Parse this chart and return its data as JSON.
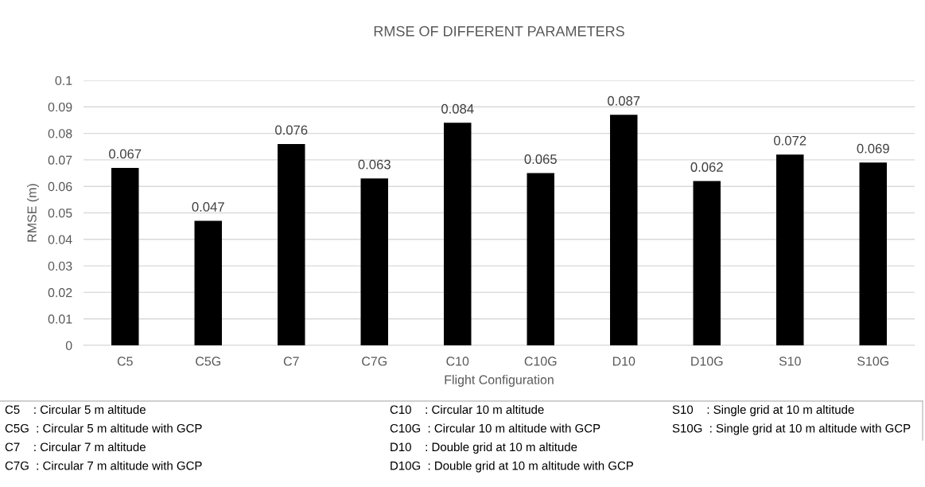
{
  "chart_data": {
    "type": "bar",
    "title": "RMSE OF DIFFERENT PARAMETERS",
    "xlabel": "Flight Configuration",
    "ylabel": "RMSE (m)",
    "categories": [
      "C5",
      "C5G",
      "C7",
      "C7G",
      "C10",
      "C10G",
      "D10",
      "D10G",
      "S10",
      "S10G"
    ],
    "values": [
      0.067,
      0.047,
      0.076,
      0.063,
      0.084,
      0.065,
      0.087,
      0.062,
      0.072,
      0.069
    ],
    "color": "#000000",
    "ylim": [
      0,
      0.1
    ],
    "yticks": [
      0,
      0.01,
      0.02,
      0.03,
      0.04,
      0.05,
      0.06,
      0.07,
      0.08,
      0.09,
      0.1
    ],
    "grid": "y",
    "data_labels": true,
    "annotations": [
      "C5    : Circular 5 m altitude",
      "C5G  : Circular 5 m altitude with GCP",
      "C7    : Circular 7 m altitude",
      "C7G  : Circular 7 m altitude with GCP",
      "C10    : Circular 10 m altitude",
      "C10G  : Circular 10 m altitude with GCP",
      "D10    : Double grid at 10 m altitude",
      "D10G  : Double grid at 10 m altitude with GCP",
      "S10    : Single grid at 10 m altitude",
      "S10G  : Single grid at 10 m altitude with GCP"
    ]
  }
}
